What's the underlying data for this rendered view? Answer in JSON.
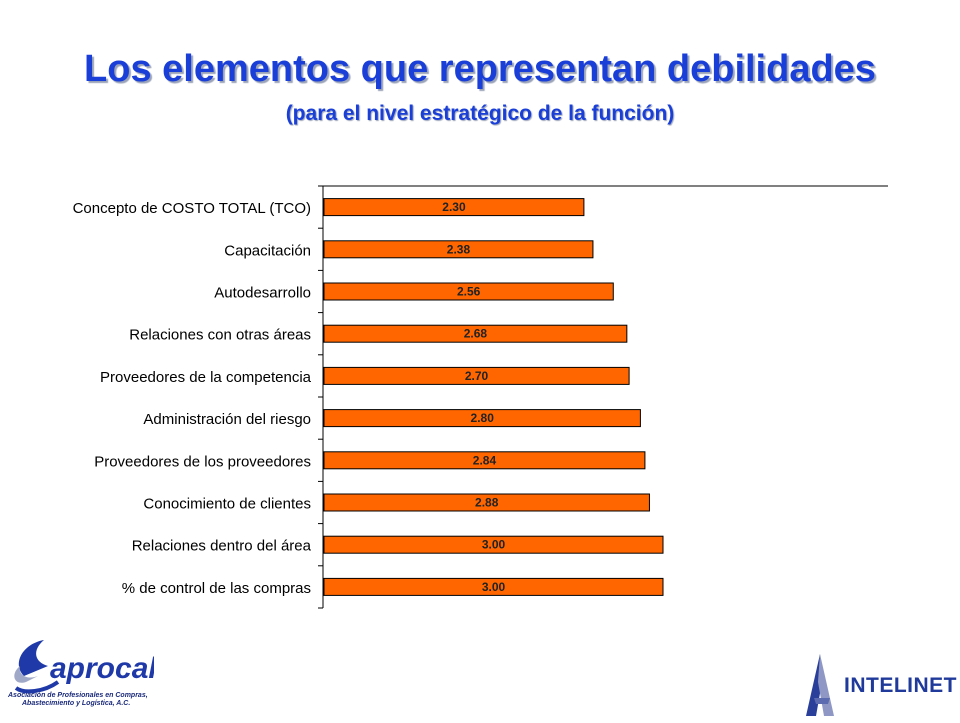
{
  "title": "Los elementos que representan debilidades",
  "subtitle": "(para el nivel estratégico de la función)",
  "chart_data": {
    "type": "bar",
    "orientation": "horizontal",
    "title": "Los elementos que representan debilidades",
    "subtitle": "(para el nivel estratégico de la función)",
    "xlabel": "",
    "ylabel": "",
    "xlim": [
      0,
      5
    ],
    "grid": false,
    "legend": "none",
    "categories": [
      "Concepto de COSTO TOTAL (TCO)",
      "Capacitación",
      "Autodesarrollo",
      "Relaciones con otras áreas",
      "Proveedores de la competencia",
      "Administración del riesgo",
      "Proveedores de los proveedores",
      "Conocimiento de clientes",
      "Relaciones dentro del área",
      "% de control de las compras"
    ],
    "values": [
      2.3,
      2.38,
      2.56,
      2.68,
      2.7,
      2.8,
      2.84,
      2.88,
      3.0,
      3.0
    ],
    "value_labels": [
      "2.30",
      "2.38",
      "2.56",
      "2.68",
      "2.70",
      "2.80",
      "2.84",
      "2.88",
      "3.00",
      "3.00"
    ],
    "bar_color": "#ff6600",
    "bar_edge_color": "#000000"
  },
  "logos": {
    "left": {
      "name": "aprocal",
      "caption_line1": "Asociación de Profesionales en Compras,",
      "caption_line2": "Abastecimiento y Logística, A.C."
    },
    "right": {
      "name": "INTELINET"
    }
  },
  "colors": {
    "title": "#1a3fd8",
    "axis": "#000000",
    "bar": "#ff6600"
  }
}
